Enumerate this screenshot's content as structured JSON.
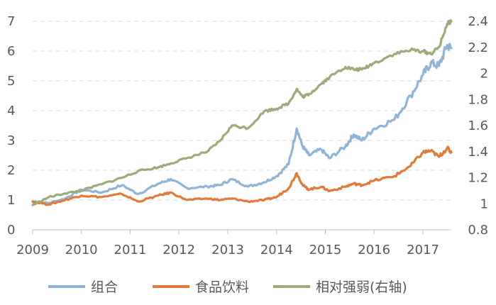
{
  "chart_data": {
    "type": "line",
    "title": "",
    "xlabel": "",
    "ylabel": "",
    "x_ticks": [
      "2009",
      "2010",
      "2011",
      "2012",
      "2013",
      "2014",
      "2015",
      "2016",
      "2017"
    ],
    "y_left": {
      "range": [
        0,
        7
      ],
      "ticks": [
        "0",
        "1",
        "2",
        "3",
        "4",
        "5",
        "6",
        "7"
      ]
    },
    "y_right": {
      "range": [
        0.8,
        2.4
      ],
      "ticks": [
        "0.8",
        "1",
        "1.2",
        "1.4",
        "1.6",
        "1.8",
        "2",
        "2.2",
        "2.4"
      ]
    },
    "grid": true,
    "legend_position": "bottom",
    "series": [
      {
        "name": "组合",
        "axis": "left",
        "color": "#8fb4d6",
        "points": [
          [
            "2009-01-01",
            0.95
          ],
          [
            "2009-05-01",
            0.9
          ],
          [
            "2009-09-01",
            1.05
          ],
          [
            "2010-01-01",
            1.35
          ],
          [
            "2010-06-01",
            1.25
          ],
          [
            "2010-11-01",
            1.5
          ],
          [
            "2011-03-01",
            1.2
          ],
          [
            "2011-08-01",
            1.55
          ],
          [
            "2011-11-01",
            1.7
          ],
          [
            "2012-03-01",
            1.4
          ],
          [
            "2012-08-01",
            1.45
          ],
          [
            "2012-11-01",
            1.5
          ],
          [
            "2013-02-01",
            1.7
          ],
          [
            "2013-06-01",
            1.45
          ],
          [
            "2013-10-01",
            1.6
          ],
          [
            "2014-01-01",
            1.8
          ],
          [
            "2014-04-01",
            2.2
          ],
          [
            "2014-06-01",
            3.4
          ],
          [
            "2014-07-15",
            2.8
          ],
          [
            "2014-09-01",
            2.5
          ],
          [
            "2014-12-01",
            2.7
          ],
          [
            "2015-02-01",
            2.4
          ],
          [
            "2015-06-01",
            2.8
          ],
          [
            "2015-08-01",
            3.2
          ],
          [
            "2015-10-01",
            3.0
          ],
          [
            "2016-01-01",
            3.4
          ],
          [
            "2016-06-01",
            3.7
          ],
          [
            "2016-10-01",
            4.5
          ],
          [
            "2017-01-01",
            5.2
          ],
          [
            "2017-03-01",
            5.6
          ],
          [
            "2017-05-01",
            5.5
          ],
          [
            "2017-07-01",
            6.2
          ],
          [
            "2017-08-01",
            6.1
          ]
        ]
      },
      {
        "name": "食品饮料",
        "axis": "left",
        "color": "#e07b39",
        "points": [
          [
            "2009-01-01",
            0.95
          ],
          [
            "2009-05-01",
            0.85
          ],
          [
            "2009-09-01",
            1.0
          ],
          [
            "2010-01-01",
            1.15
          ],
          [
            "2010-06-01",
            1.1
          ],
          [
            "2010-11-01",
            1.2
          ],
          [
            "2011-03-01",
            0.95
          ],
          [
            "2011-08-01",
            1.15
          ],
          [
            "2011-11-01",
            1.25
          ],
          [
            "2012-03-01",
            1.0
          ],
          [
            "2012-08-01",
            1.05
          ],
          [
            "2012-11-01",
            1.0
          ],
          [
            "2013-02-01",
            1.05
          ],
          [
            "2013-06-01",
            0.95
          ],
          [
            "2013-10-01",
            1.0
          ],
          [
            "2014-01-01",
            1.1
          ],
          [
            "2014-04-01",
            1.4
          ],
          [
            "2014-06-01",
            1.9
          ],
          [
            "2014-07-15",
            1.5
          ],
          [
            "2014-09-01",
            1.35
          ],
          [
            "2014-12-01",
            1.45
          ],
          [
            "2015-02-01",
            1.3
          ],
          [
            "2015-06-01",
            1.45
          ],
          [
            "2015-08-01",
            1.55
          ],
          [
            "2015-10-01",
            1.5
          ],
          [
            "2016-01-01",
            1.65
          ],
          [
            "2016-06-01",
            1.8
          ],
          [
            "2016-10-01",
            2.15
          ],
          [
            "2017-01-01",
            2.6
          ],
          [
            "2017-03-01",
            2.65
          ],
          [
            "2017-05-01",
            2.45
          ],
          [
            "2017-07-01",
            2.75
          ],
          [
            "2017-08-01",
            2.6
          ]
        ]
      },
      {
        "name": "相对强弱(右轴)",
        "axis": "right",
        "color": "#9cab7a",
        "points": [
          [
            "2009-01-01",
            0.99
          ],
          [
            "2009-05-01",
            1.05
          ],
          [
            "2009-09-01",
            1.08
          ],
          [
            "2010-01-01",
            1.1
          ],
          [
            "2010-06-01",
            1.15
          ],
          [
            "2010-11-01",
            1.2
          ],
          [
            "2011-03-01",
            1.25
          ],
          [
            "2011-08-01",
            1.28
          ],
          [
            "2011-11-01",
            1.31
          ],
          [
            "2012-03-01",
            1.35
          ],
          [
            "2012-08-01",
            1.4
          ],
          [
            "2012-11-01",
            1.48
          ],
          [
            "2013-02-01",
            1.6
          ],
          [
            "2013-06-01",
            1.58
          ],
          [
            "2013-10-01",
            1.71
          ],
          [
            "2014-01-01",
            1.73
          ],
          [
            "2014-04-01",
            1.77
          ],
          [
            "2014-06-01",
            1.88
          ],
          [
            "2014-07-15",
            1.82
          ],
          [
            "2014-09-01",
            1.84
          ],
          [
            "2014-12-01",
            1.92
          ],
          [
            "2015-02-01",
            1.97
          ],
          [
            "2015-06-01",
            2.05
          ],
          [
            "2015-08-01",
            2.03
          ],
          [
            "2015-10-01",
            2.03
          ],
          [
            "2016-01-01",
            2.08
          ],
          [
            "2016-06-01",
            2.15
          ],
          [
            "2016-10-01",
            2.18
          ],
          [
            "2017-01-01",
            2.17
          ],
          [
            "2017-03-01",
            2.15
          ],
          [
            "2017-05-01",
            2.2
          ],
          [
            "2017-07-01",
            2.38
          ],
          [
            "2017-08-01",
            2.4
          ]
        ]
      }
    ]
  }
}
